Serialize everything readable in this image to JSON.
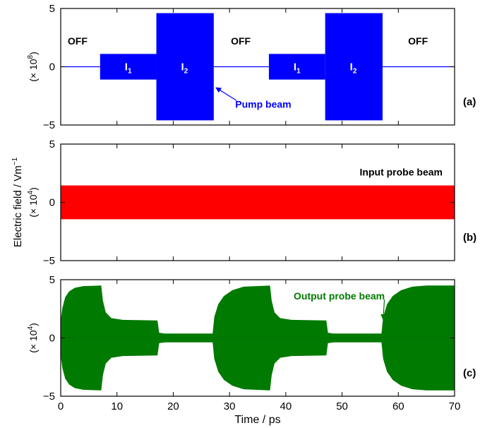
{
  "chart_data": [
    {
      "type": "line",
      "panel_label": "(a)",
      "ylabel_scale": "(× 10",
      "ylabel_scale_exp": "8",
      "ylabel_scale_close": ")",
      "ylim": [
        -5,
        5
      ],
      "yticks": [
        "5",
        "0",
        "−5"
      ],
      "xlim": [
        0,
        70
      ],
      "series": [
        {
          "color": "#0000ff",
          "segments": [
            {
              "x_start": 0,
              "x_end": 7,
              "amplitude": 0
            },
            {
              "x_start": 7,
              "x_end": 17,
              "amplitude": 1.1
            },
            {
              "x_start": 17,
              "x_end": 27.2,
              "amplitude": 4.6
            },
            {
              "x_start": 27.2,
              "x_end": 37,
              "amplitude": 0
            },
            {
              "x_start": 37,
              "x_end": 47,
              "amplitude": 1.1
            },
            {
              "x_start": 47,
              "x_end": 57.2,
              "amplitude": 4.6
            },
            {
              "x_start": 57.2,
              "x_end": 70,
              "amplitude": 0
            }
          ]
        }
      ],
      "annotations": [
        {
          "id": "off-1",
          "text": "OFF",
          "x": 3.0,
          "y": 1.9
        },
        {
          "id": "i1-first",
          "text": "I",
          "sub": "1",
          "x": 12.0,
          "y": 0.05
        },
        {
          "id": "i2-first",
          "text": "I",
          "sub": "2",
          "x": 22.0,
          "y": 0.05
        },
        {
          "id": "off-2",
          "text": "OFF",
          "x": 32.0,
          "y": 1.9
        },
        {
          "id": "i1-second",
          "text": "I",
          "sub": "1",
          "x": 42.0,
          "y": 0.05
        },
        {
          "id": "i2-second",
          "text": "I",
          "sub": "2",
          "x": 52.0,
          "y": 0.05
        },
        {
          "id": "off-3",
          "text": "OFF",
          "x": 63.5,
          "y": 1.9
        },
        {
          "id": "pump-beam",
          "text": "Pump beam",
          "x": 36.0,
          "y": -3.5,
          "arrow_to": [
            27.6,
            -1.8
          ]
        }
      ]
    },
    {
      "type": "line",
      "panel_label": "(b)",
      "ylabel": "Electric field / Vm",
      "ylabel_exp": "−1",
      "ylabel_scale": "(× 10",
      "ylabel_scale_exp": "4",
      "ylabel_scale_close": ")",
      "ylim": [
        -5,
        5
      ],
      "yticks": [
        "5",
        "0",
        "−5"
      ],
      "xlim": [
        0,
        70
      ],
      "series": [
        {
          "color": "#ff0000",
          "segments": [
            {
              "x_start": 0,
              "x_end": 70,
              "amplitude": 1.45
            }
          ]
        }
      ],
      "annotations": [
        {
          "id": "input-probe",
          "text": "Input probe beam",
          "x": 60.5,
          "y": 2.3
        }
      ]
    },
    {
      "type": "line",
      "panel_label": "(c)",
      "ylabel_scale": "(× 10",
      "ylabel_scale_exp": "4",
      "ylabel_scale_close": ")",
      "ylim": [
        -5,
        5
      ],
      "yticks": [
        "5",
        "0",
        "−5"
      ],
      "xlim": [
        0,
        70
      ],
      "xticks": [
        "0",
        "10",
        "20",
        "30",
        "40",
        "50",
        "60",
        "70"
      ],
      "xlabel": "Time / ps",
      "series": [
        {
          "color": "#007a00",
          "envelope": [
            [
              0,
              1.5
            ],
            [
              0.3,
              2.6
            ],
            [
              0.8,
              3.5
            ],
            [
              1.5,
              4.0
            ],
            [
              2.5,
              4.3
            ],
            [
              4.0,
              4.45
            ],
            [
              7.2,
              4.5
            ],
            [
              7.5,
              3.2
            ],
            [
              8.0,
              2.2
            ],
            [
              9.0,
              1.7
            ],
            [
              11.0,
              1.55
            ],
            [
              17.2,
              1.5
            ],
            [
              17.5,
              0.45
            ],
            [
              18.5,
              0.38
            ],
            [
              27.0,
              0.38
            ],
            [
              27.3,
              1.8
            ],
            [
              28.0,
              2.9
            ],
            [
              29.0,
              3.6
            ],
            [
              30.5,
              4.1
            ],
            [
              32.5,
              4.4
            ],
            [
              37.2,
              4.5
            ],
            [
              37.5,
              3.2
            ],
            [
              38.0,
              2.2
            ],
            [
              39.0,
              1.7
            ],
            [
              41.0,
              1.55
            ],
            [
              47.2,
              1.5
            ],
            [
              47.5,
              0.45
            ],
            [
              48.5,
              0.38
            ],
            [
              57.0,
              0.38
            ],
            [
              57.3,
              1.8
            ],
            [
              58.0,
              2.9
            ],
            [
              59.0,
              3.6
            ],
            [
              60.5,
              4.1
            ],
            [
              62.5,
              4.4
            ],
            [
              65.0,
              4.5
            ],
            [
              70,
              4.5
            ]
          ]
        }
      ],
      "annotations": [
        {
          "id": "output-probe",
          "text": "Output probe beam",
          "x": 49.5,
          "y": 3.3,
          "arrow_to": [
            57.3,
            1.6
          ]
        }
      ]
    }
  ]
}
